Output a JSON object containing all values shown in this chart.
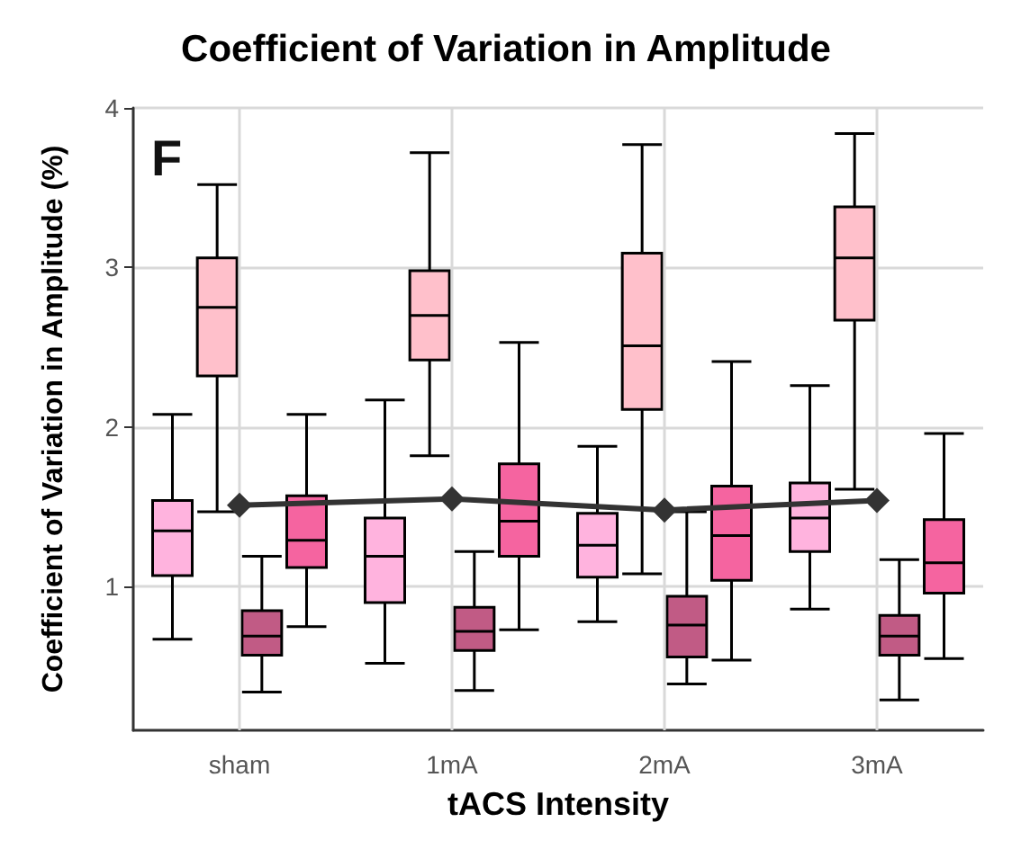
{
  "chart_data": {
    "type": "box",
    "title": "Coefficient of Variation in Amplitude",
    "xlabel": "tACS Intensity",
    "ylabel": "Coefficient of Variation in Amplitude (%)",
    "annotations": [
      "F"
    ],
    "categories": [
      "sham",
      "1mA",
      "2mA",
      "3mA"
    ],
    "ylim": [
      0.1,
      4
    ],
    "yticks": [
      1,
      2,
      3,
      4
    ],
    "grid": true,
    "marker": "diamond",
    "line_style": "solid",
    "series": [
      {
        "color": "#ffb3de",
        "boxes": [
          {
            "low": 0.67,
            "q1": 1.07,
            "median": 1.35,
            "q3": 1.54,
            "high": 2.08
          },
          {
            "low": 0.52,
            "q1": 0.9,
            "median": 1.19,
            "q3": 1.43,
            "high": 2.17
          },
          {
            "low": 0.78,
            "q1": 1.06,
            "median": 1.26,
            "q3": 1.46,
            "high": 1.88
          },
          {
            "low": 0.86,
            "q1": 1.22,
            "median": 1.43,
            "q3": 1.65,
            "high": 2.26
          }
        ]
      },
      {
        "color": "#ffc0cb",
        "boxes": [
          {
            "low": 1.47,
            "q1": 2.32,
            "median": 2.75,
            "q3": 3.06,
            "high": 3.52
          },
          {
            "low": 1.82,
            "q1": 2.42,
            "median": 2.7,
            "q3": 2.98,
            "high": 3.72
          },
          {
            "low": 1.08,
            "q1": 2.11,
            "median": 2.51,
            "q3": 3.09,
            "high": 3.77
          },
          {
            "low": 1.61,
            "q1": 2.67,
            "median": 3.06,
            "q3": 3.38,
            "high": 3.84
          }
        ]
      },
      {
        "color": "#c15b85",
        "boxes": [
          {
            "low": 0.34,
            "q1": 0.57,
            "median": 0.69,
            "q3": 0.85,
            "high": 1.19
          },
          {
            "low": 0.35,
            "q1": 0.6,
            "median": 0.72,
            "q3": 0.87,
            "high": 1.22
          },
          {
            "low": 0.39,
            "q1": 0.56,
            "median": 0.76,
            "q3": 0.94,
            "high": 1.47
          },
          {
            "low": 0.29,
            "q1": 0.57,
            "median": 0.69,
            "q3": 0.82,
            "high": 1.17
          }
        ]
      },
      {
        "color": "#f564a0",
        "boxes": [
          {
            "low": 0.75,
            "q1": 1.12,
            "median": 1.29,
            "q3": 1.57,
            "high": 2.08
          },
          {
            "low": 0.73,
            "q1": 1.19,
            "median": 1.41,
            "q3": 1.77,
            "high": 2.53
          },
          {
            "low": 0.54,
            "q1": 1.04,
            "median": 1.32,
            "q3": 1.63,
            "high": 2.41
          },
          {
            "low": 0.55,
            "q1": 0.96,
            "median": 1.15,
            "q3": 1.42,
            "high": 1.96
          }
        ]
      },
      {
        "type": "line",
        "color": "#333333",
        "values": [
          1.51,
          1.55,
          1.48,
          1.54
        ]
      }
    ]
  }
}
